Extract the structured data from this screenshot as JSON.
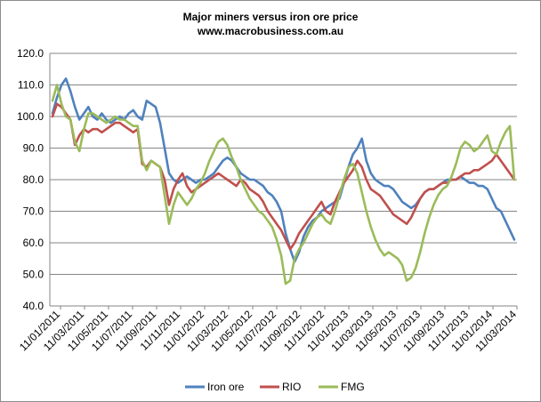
{
  "chart_data": {
    "type": "line",
    "title": "Major  miners versus iron ore price",
    "subtitle": "www.macrobusiness.com.au",
    "xlabel": "",
    "ylabel": "",
    "ylim": [
      40,
      120
    ],
    "y_ticks": [
      "40.0",
      "50.0",
      "60.0",
      "70.0",
      "80.0",
      "90.0",
      "100.0",
      "110.0",
      "120.0"
    ],
    "x_tick_labels": [
      "11/01/2011",
      "11/03/2011",
      "11/05/2011",
      "11/07/2011",
      "11/09/2011",
      "11/11/2011",
      "11/01/2012",
      "11/03/2012",
      "11/05/2012",
      "11/07/2012",
      "11/09/2012",
      "11/11/2012",
      "11/01/2013",
      "11/03/2013",
      "11/05/2013",
      "11/07/2013",
      "11/09/2013",
      "11/11/2013",
      "11/01/2014",
      "11/03/2014"
    ],
    "grid": true,
    "legend_position": "bottom",
    "series": [
      {
        "name": "Iron ore",
        "color": "#4f81bd",
        "values": [
          101,
          106,
          110,
          112,
          108,
          103,
          99,
          101,
          103,
          100,
          99,
          101,
          99,
          98,
          99,
          100,
          99,
          101,
          102,
          100,
          99,
          105,
          104,
          103,
          98,
          90,
          82,
          80,
          79,
          80,
          81,
          80,
          79,
          80,
          80,
          81,
          82,
          84,
          86,
          87,
          86,
          84,
          82,
          81,
          80,
          80,
          79,
          78,
          76,
          75,
          73,
          70,
          63,
          58,
          54,
          57,
          62,
          65,
          67,
          68,
          70,
          71,
          72,
          73,
          74,
          79,
          84,
          88,
          90,
          93,
          86,
          82,
          80,
          79,
          78,
          78,
          77,
          75,
          73,
          72,
          71,
          72,
          74,
          76,
          77,
          77,
          78,
          79,
          80,
          80,
          80,
          81,
          80,
          79,
          79,
          78,
          78,
          77,
          74,
          71,
          70,
          67,
          64,
          61
        ]
      },
      {
        "name": "RIO",
        "color": "#c0504d",
        "values": [
          100,
          104,
          103,
          101,
          99,
          91,
          94,
          96,
          95,
          96,
          96,
          95,
          96,
          97,
          98,
          98,
          97,
          96,
          95,
          96,
          85,
          84,
          86,
          85,
          84,
          80,
          72,
          77,
          80,
          82,
          78,
          76,
          77,
          78,
          79,
          80,
          81,
          82,
          81,
          80,
          79,
          78,
          80,
          79,
          77,
          76,
          75,
          73,
          70,
          68,
          66,
          64,
          61,
          58,
          60,
          63,
          65,
          67,
          69,
          71,
          73,
          70,
          69,
          73,
          76,
          79,
          81,
          83,
          86,
          84,
          80,
          77,
          76,
          75,
          73,
          71,
          69,
          68,
          67,
          66,
          68,
          71,
          74,
          76,
          77,
          77,
          78,
          79,
          79,
          80,
          80,
          81,
          82,
          82,
          83,
          83,
          84,
          85,
          86,
          88,
          86,
          84,
          82,
          80
        ]
      },
      {
        "name": "FMG",
        "color": "#9bbb59",
        "values": [
          105,
          110,
          104,
          100,
          99,
          92,
          89,
          96,
          101,
          101,
          100,
          99,
          98,
          99,
          100,
          99,
          99,
          98,
          97,
          97,
          86,
          83,
          86,
          85,
          84,
          75,
          66,
          72,
          76,
          74,
          72,
          74,
          77,
          79,
          82,
          86,
          89,
          92,
          93,
          91,
          87,
          84,
          80,
          77,
          74,
          72,
          70,
          69,
          67,
          65,
          61,
          56,
          47,
          48,
          55,
          58,
          60,
          63,
          66,
          68,
          69,
          67,
          66,
          70,
          75,
          80,
          84,
          85,
          82,
          76,
          70,
          65,
          61,
          58,
          56,
          57,
          56,
          55,
          53,
          48,
          49,
          52,
          57,
          63,
          68,
          72,
          75,
          77,
          78,
          81,
          85,
          90,
          92,
          91,
          89,
          90,
          92,
          94,
          89,
          88,
          92,
          95,
          97,
          80
        ]
      }
    ]
  }
}
